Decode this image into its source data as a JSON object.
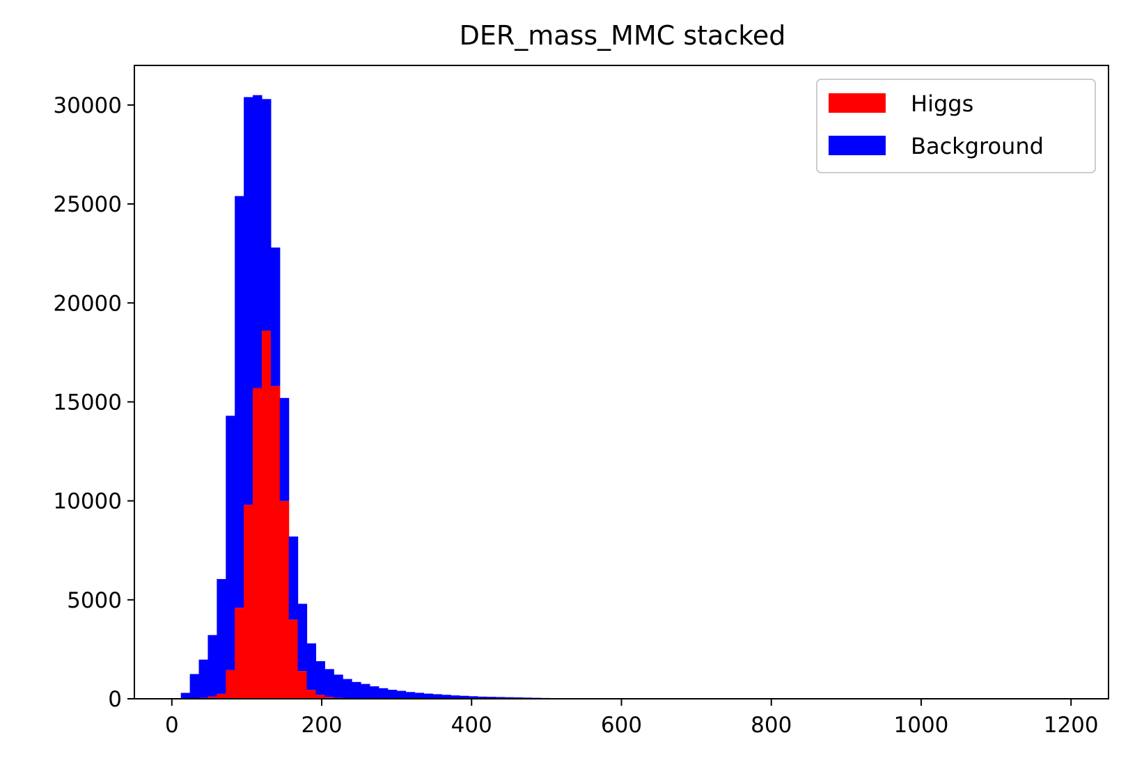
{
  "chart_data": {
    "type": "bar",
    "title": "DER_mass_MMC stacked",
    "xlabel": "",
    "ylabel": "",
    "stacked": true,
    "bin_width": 12,
    "x": [
      12,
      24,
      36,
      48,
      60,
      72,
      84,
      96,
      108,
      120,
      132,
      144,
      156,
      168,
      180,
      192,
      204,
      216,
      228,
      240,
      252,
      264,
      276,
      288,
      300,
      312,
      324,
      336,
      348,
      360,
      372,
      384,
      396,
      408,
      420,
      432,
      444,
      456,
      468,
      480,
      492,
      504,
      516
    ],
    "series": [
      {
        "name": "Higgs",
        "color": "#ff0000",
        "values": [
          10,
          20,
          50,
          120,
          250,
          1450,
          4600,
          9800,
          15700,
          18600,
          15800,
          10000,
          4000,
          1400,
          450,
          200,
          100,
          50,
          30,
          20,
          10,
          10,
          5,
          5,
          2,
          2,
          2,
          1,
          1,
          1,
          1,
          0,
          0,
          0,
          0,
          0,
          0,
          0,
          0,
          0,
          0,
          0,
          0
        ]
      },
      {
        "name": "Background",
        "color": "#0000ff",
        "values": [
          290,
          1230,
          1930,
          3100,
          5800,
          12850,
          20800,
          20600,
          14800,
          11700,
          7000,
          5200,
          4200,
          3400,
          2350,
          1700,
          1400,
          1170,
          970,
          830,
          740,
          620,
          530,
          450,
          400,
          340,
          300,
          260,
          230,
          200,
          170,
          150,
          130,
          110,
          100,
          90,
          80,
          70,
          60,
          50,
          40,
          30,
          20
        ]
      }
    ],
    "xlim": [
      -50,
      1250
    ],
    "ylim": [
      0,
      32000
    ],
    "xticks": [
      0,
      200,
      400,
      600,
      800,
      1000,
      1200
    ],
    "yticks": [
      0,
      5000,
      10000,
      15000,
      20000,
      25000,
      30000
    ],
    "legend_position": "top-right",
    "grid": false
  }
}
